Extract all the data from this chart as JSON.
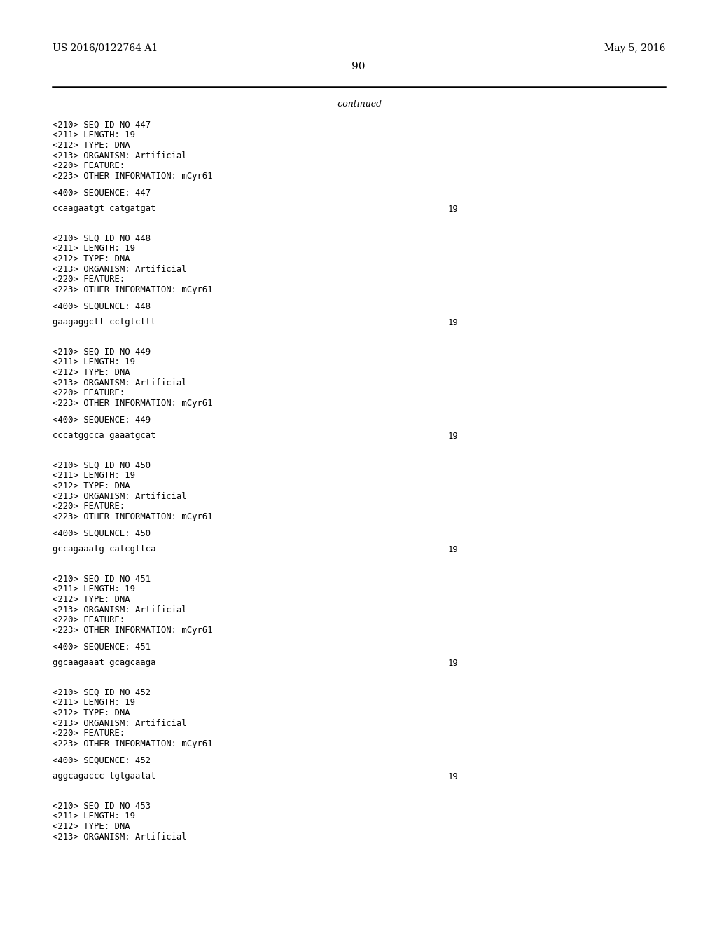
{
  "header_left": "US 2016/0122764 A1",
  "header_right": "May 5, 2016",
  "page_number": "90",
  "continued_text": "-continued",
  "background_color": "#ffffff",
  "text_color": "#000000",
  "font_size_header": 10.0,
  "font_size_page": 11.0,
  "font_size_body": 9.0,
  "mono_size": 8.8,
  "blocks": [
    {
      "meta": [
        "<210> SEQ ID NO 447",
        "<211> LENGTH: 19",
        "<212> TYPE: DNA",
        "<213> ORGANISM: Artificial",
        "<220> FEATURE:",
        "<223> OTHER INFORMATION: mCyr61"
      ],
      "seq_label": "<400> SEQUENCE: 447",
      "sequence": "ccaagaatgt catgatgat",
      "seq_num": "19"
    },
    {
      "meta": [
        "<210> SEQ ID NO 448",
        "<211> LENGTH: 19",
        "<212> TYPE: DNA",
        "<213> ORGANISM: Artificial",
        "<220> FEATURE:",
        "<223> OTHER INFORMATION: mCyr61"
      ],
      "seq_label": "<400> SEQUENCE: 448",
      "sequence": "gaagaggctt cctgtcttt",
      "seq_num": "19"
    },
    {
      "meta": [
        "<210> SEQ ID NO 449",
        "<211> LENGTH: 19",
        "<212> TYPE: DNA",
        "<213> ORGANISM: Artificial",
        "<220> FEATURE:",
        "<223> OTHER INFORMATION: mCyr61"
      ],
      "seq_label": "<400> SEQUENCE: 449",
      "sequence": "cccatggcca gaaatgcat",
      "seq_num": "19"
    },
    {
      "meta": [
        "<210> SEQ ID NO 450",
        "<211> LENGTH: 19",
        "<212> TYPE: DNA",
        "<213> ORGANISM: Artificial",
        "<220> FEATURE:",
        "<223> OTHER INFORMATION: mCyr61"
      ],
      "seq_label": "<400> SEQUENCE: 450",
      "sequence": "gccagaaatg catcgttca",
      "seq_num": "19"
    },
    {
      "meta": [
        "<210> SEQ ID NO 451",
        "<211> LENGTH: 19",
        "<212> TYPE: DNA",
        "<213> ORGANISM: Artificial",
        "<220> FEATURE:",
        "<223> OTHER INFORMATION: mCyr61"
      ],
      "seq_label": "<400> SEQUENCE: 451",
      "sequence": "ggcaagaaat gcagcaaga",
      "seq_num": "19"
    },
    {
      "meta": [
        "<210> SEQ ID NO 452",
        "<211> LENGTH: 19",
        "<212> TYPE: DNA",
        "<213> ORGANISM: Artificial",
        "<220> FEATURE:",
        "<223> OTHER INFORMATION: mCyr61"
      ],
      "seq_label": "<400> SEQUENCE: 452",
      "sequence": "aggcagaccc tgtgaatat",
      "seq_num": "19"
    },
    {
      "meta": [
        "<210> SEQ ID NO 453",
        "<211> LENGTH: 19",
        "<212> TYPE: DNA",
        "<213> ORGANISM: Artificial"
      ],
      "seq_label": "",
      "sequence": "",
      "seq_num": ""
    }
  ]
}
